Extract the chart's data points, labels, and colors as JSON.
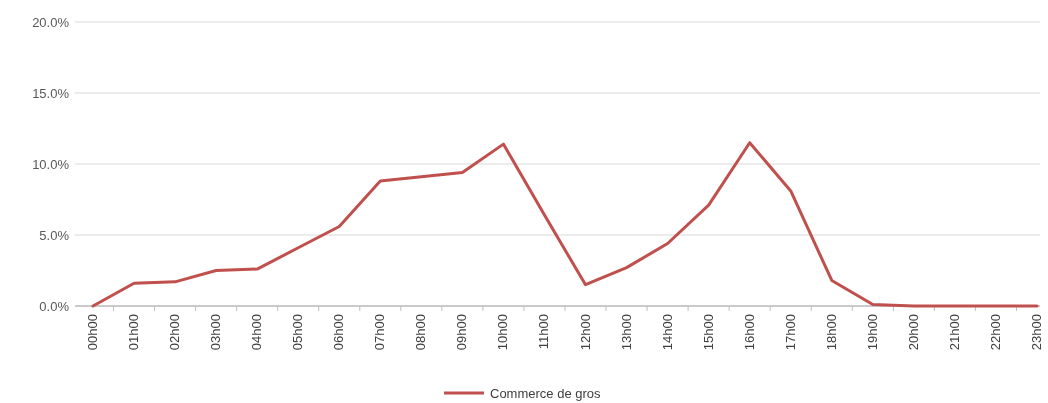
{
  "chart_data": {
    "type": "line",
    "categories": [
      "00h00",
      "01h00",
      "02h00",
      "03h00",
      "04h00",
      "05h00",
      "06h00",
      "07h00",
      "08h00",
      "09h00",
      "10h00",
      "11h00",
      "12h00",
      "13h00",
      "14h00",
      "15h00",
      "16h00",
      "17h00",
      "18h00",
      "19h00",
      "20h00",
      "21h00",
      "22h00",
      "23h00"
    ],
    "series": [
      {
        "name": "Commerce de gros",
        "color": "#c0504d",
        "values": [
          0,
          1.6,
          1.7,
          2.5,
          2.6,
          4.1,
          5.6,
          8.8,
          9.1,
          9.4,
          11.4,
          6.4,
          1.5,
          2.7,
          4.4,
          7.1,
          11.5,
          8.1,
          1.8,
          0.1,
          0,
          0,
          0,
          0
        ]
      }
    ],
    "ylim": [
      0,
      20
    ],
    "yticks": [
      {
        "value": 0,
        "label": "0.0%"
      },
      {
        "value": 5,
        "label": "5.0%"
      },
      {
        "value": 10,
        "label": "10.0%"
      },
      {
        "value": 15,
        "label": "15.0%"
      },
      {
        "value": 20,
        "label": "20.0%"
      }
    ],
    "grid": "y",
    "legend": "bottom",
    "marker": "none",
    "line_style": "solid"
  }
}
